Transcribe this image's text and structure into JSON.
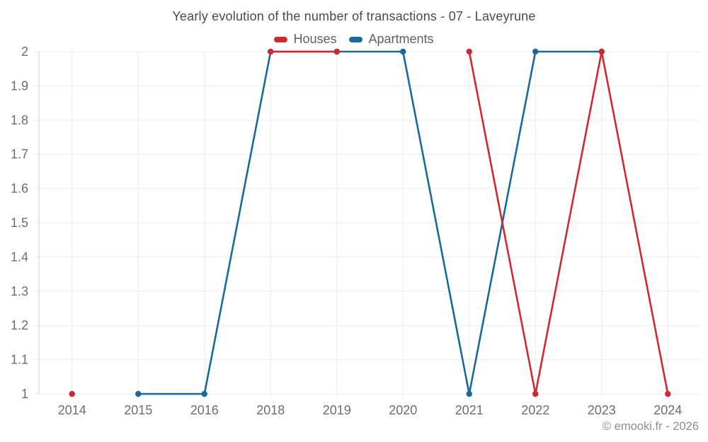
{
  "chart_data": {
    "type": "line",
    "title": "Yearly evolution of the number of transactions - 07 - Laveyrune",
    "categories": [
      "2014",
      "2015",
      "2016",
      "2018",
      "2019",
      "2020",
      "2021",
      "2022",
      "2023",
      "2024"
    ],
    "series": [
      {
        "name": "Houses",
        "color": "#d0282e",
        "values": [
          1,
          null,
          null,
          2,
          2,
          null,
          2,
          1,
          2,
          1
        ]
      },
      {
        "name": "Apartments",
        "color": "#17699e",
        "values": [
          null,
          1,
          1,
          2,
          2,
          2,
          1,
          2,
          2,
          null
        ]
      }
    ],
    "ylim": [
      1,
      2
    ],
    "ytick_step": 0.1,
    "ytick_labels": [
      "1",
      "1.1",
      "1.2",
      "1.3",
      "1.4",
      "1.5",
      "1.6",
      "1.7",
      "1.8",
      "1.9",
      "2"
    ],
    "grid": true,
    "legend_position": "top",
    "xlabel": "",
    "ylabel": ""
  },
  "watermark": {
    "text": "© emooki.fr - 2026"
  },
  "style_colors": {
    "grid": "#ececec",
    "axis": "#cccccc",
    "tick_text": "#6d6d6d",
    "title_text": "#4a4a4a"
  }
}
